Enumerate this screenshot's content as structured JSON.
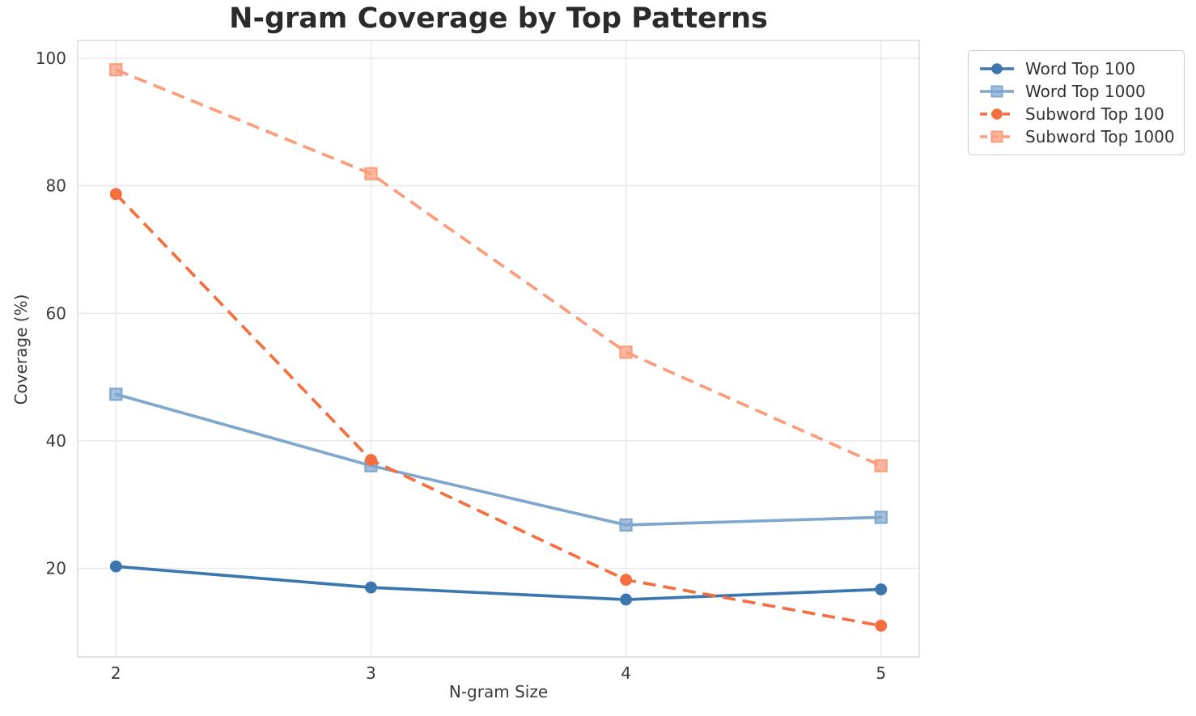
{
  "title": "N-gram Coverage by Top Patterns",
  "axes": {
    "xlabel": "N-gram Size",
    "ylabel": "Coverage (%)"
  },
  "colors": {
    "grid": "#e9e9e9",
    "spine": "#d9d9d9",
    "tick_text": "#3a3a3a",
    "title_text": "#2b2b2b",
    "legend_border": "#cbcbcb",
    "word_top_100": "#3b77ae",
    "word_top_1000": "#7fa7ce",
    "subword_top_100": "#f56e3f",
    "subword_top_1000": "#fb9c7b"
  },
  "chart_data": {
    "type": "line",
    "title": "N-gram Coverage by Top Patterns",
    "xlabel": "N-gram Size",
    "ylabel": "Coverage (%)",
    "x": [
      2,
      3,
      4,
      5
    ],
    "xticks": [
      2,
      3,
      4,
      5
    ],
    "yticks": [
      20,
      40,
      60,
      80,
      100
    ],
    "xlim": [
      1.85,
      5.15
    ],
    "ylim": [
      6.1,
      102.8
    ],
    "grid": true,
    "legend_position": "outside upper right",
    "series": [
      {
        "name": "Word Top 100",
        "color": "#3b77ae",
        "marker": "circle",
        "linestyle": "solid",
        "values": [
          20.3,
          17.0,
          15.1,
          16.7
        ]
      },
      {
        "name": "Word Top 1000",
        "color": "#7fa7ce",
        "marker": "square",
        "linestyle": "solid",
        "values": [
          47.3,
          36.1,
          26.8,
          28.0
        ]
      },
      {
        "name": "Subword Top 100",
        "color": "#f56e3f",
        "marker": "circle",
        "linestyle": "dashed",
        "values": [
          78.7,
          37.0,
          18.2,
          11.0
        ]
      },
      {
        "name": "Subword Top 1000",
        "color": "#fb9c7b",
        "marker": "square",
        "linestyle": "dashed",
        "values": [
          98.2,
          81.9,
          53.9,
          36.1
        ]
      }
    ]
  }
}
